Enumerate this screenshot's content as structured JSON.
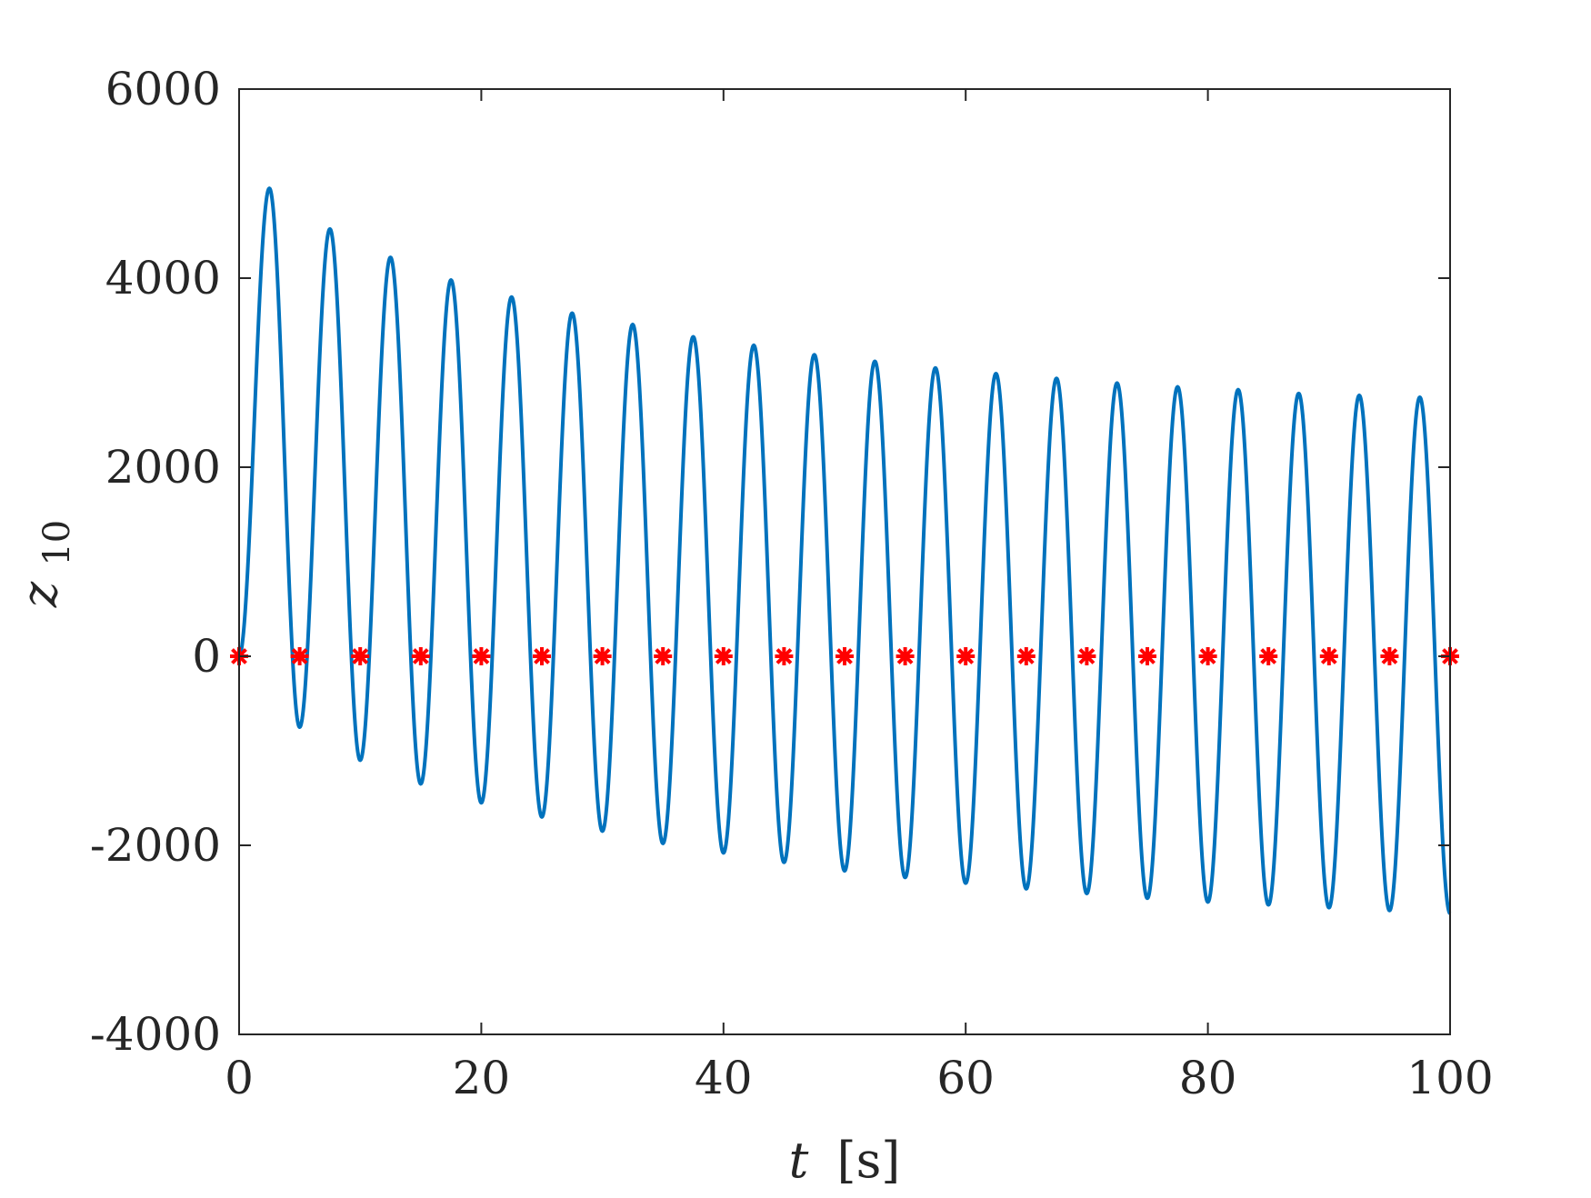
{
  "chart_data": {
    "type": "line",
    "title": "",
    "xlabel_var": "t",
    "xlabel_unit": "[s]",
    "ylabel_base": "z",
    "ylabel_sub": "10",
    "xlim": [
      0,
      100
    ],
    "ylim": [
      -4000,
      6000
    ],
    "xticks": [
      0,
      20,
      40,
      60,
      80,
      100
    ],
    "yticks": [
      -4000,
      -2000,
      0,
      2000,
      4000,
      6000
    ],
    "xtick_labels": [
      "0",
      "20",
      "40",
      "60",
      "80",
      "100"
    ],
    "ytick_labels": [
      "-4000",
      "-2000",
      "0",
      "2000",
      "4000",
      "6000"
    ],
    "grid": false,
    "legend": "none",
    "series": [
      {
        "kind": "line",
        "color": "#0072BD",
        "period": 5,
        "peaks_t": [
          2.5,
          7.5,
          12.5,
          17.5,
          22.5,
          27.5,
          32.5,
          37.5,
          42.5,
          47.5,
          52.5,
          57.5,
          62.5,
          67.5,
          72.5,
          77.5,
          82.5,
          87.5,
          92.5,
          97.5
        ],
        "peaks_z": [
          4950,
          4520,
          4220,
          3980,
          3800,
          3630,
          3510,
          3380,
          3290,
          3190,
          3120,
          3050,
          2990,
          2940,
          2890,
          2850,
          2820,
          2780,
          2760,
          2740
        ],
        "troughs_t": [
          0,
          5,
          10,
          15,
          20,
          25,
          30,
          35,
          40,
          45,
          50,
          55,
          60,
          65,
          70,
          75,
          80,
          85,
          90,
          95,
          100
        ],
        "troughs_z": [
          0,
          -750,
          -1100,
          -1350,
          -1550,
          -1700,
          -1850,
          -1980,
          -2080,
          -2180,
          -2270,
          -2340,
          -2400,
          -2460,
          -2510,
          -2560,
          -2600,
          -2630,
          -2660,
          -2690,
          -2720
        ]
      },
      {
        "kind": "markers",
        "marker": "asterisk",
        "color": "#FF0000",
        "x": [
          0,
          5,
          10,
          15,
          20,
          25,
          30,
          35,
          40,
          45,
          50,
          55,
          60,
          65,
          70,
          75,
          80,
          85,
          90,
          95,
          100
        ],
        "y": [
          0,
          0,
          0,
          0,
          0,
          0,
          0,
          0,
          0,
          0,
          0,
          0,
          0,
          0,
          0,
          0,
          0,
          0,
          0,
          0,
          0
        ]
      }
    ]
  }
}
